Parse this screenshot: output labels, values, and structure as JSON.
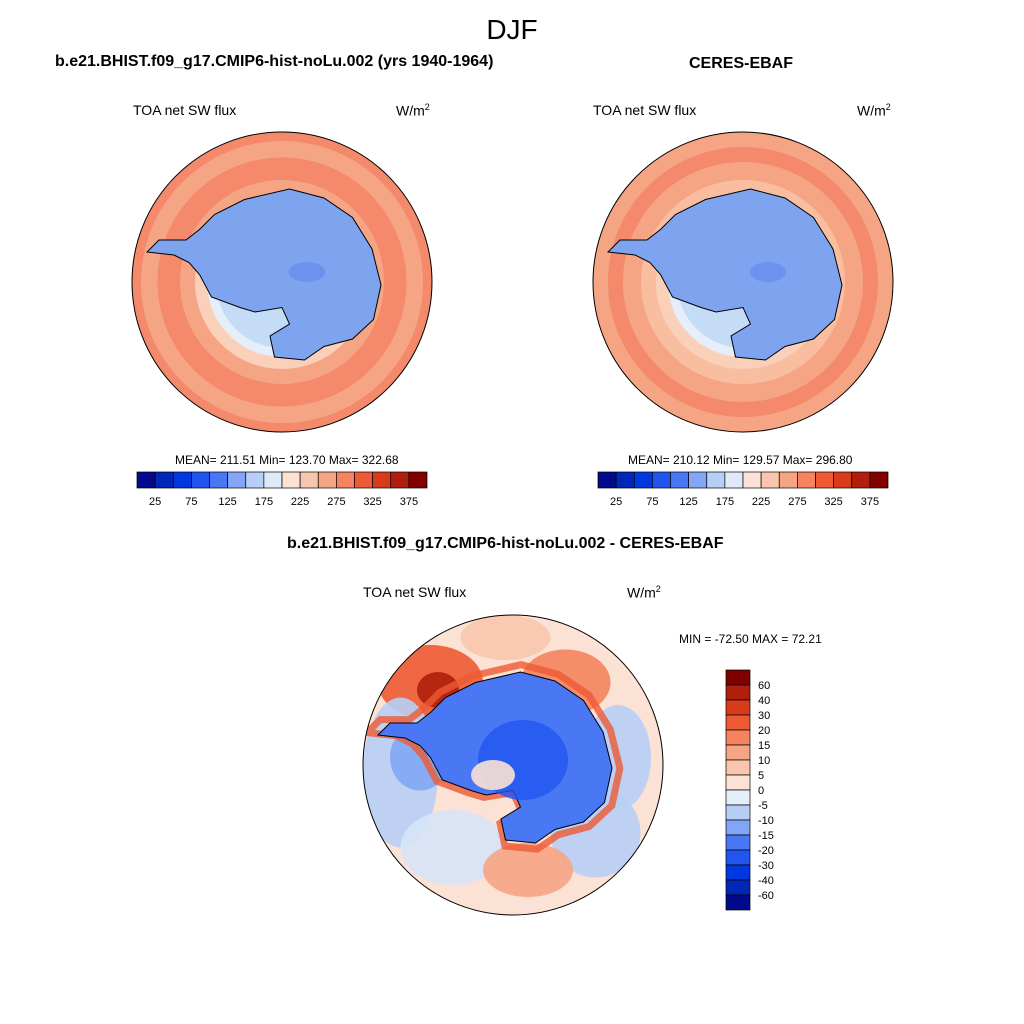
{
  "title": "DJF",
  "panels": [
    {
      "title": "b.e21.BHIST.f09_g17.CMIP6-hist-noLu.002 (yrs 1940-1964)",
      "variable": "TOA net SW flux",
      "units_base": "W/m",
      "units_exp": "2",
      "stats": "MEAN= 211.51  Min= 123.70  Max= 322.68",
      "field": {
        "bands": [
          {
            "r": 1.0,
            "c": "#f4896b"
          },
          {
            "r": 0.94,
            "c": "#f6a584"
          },
          {
            "r": 0.83,
            "c": "#f4896b"
          },
          {
            "r": 0.68,
            "c": "#f6a584"
          },
          {
            "r": 0.58,
            "c": "#fbd0ba"
          },
          {
            "r": 0.5,
            "c": "#e4effa"
          },
          {
            "r": 0.44,
            "c": "#c4dcf6"
          }
        ]
      }
    },
    {
      "title": "CERES-EBAF",
      "variable": "TOA net SW flux",
      "units_base": "W/m",
      "units_exp": "2",
      "stats": "MEAN= 210.12  Min= 129.57  Max= 296.80",
      "field": {
        "bands": [
          {
            "r": 1.0,
            "c": "#f6a584"
          },
          {
            "r": 0.9,
            "c": "#f4896b"
          },
          {
            "r": 0.8,
            "c": "#f6a584"
          },
          {
            "r": 0.68,
            "c": "#f9bda0"
          },
          {
            "r": 0.58,
            "c": "#fbd0ba"
          },
          {
            "r": 0.5,
            "c": "#e4effa"
          },
          {
            "r": 0.44,
            "c": "#c4dcf6"
          }
        ]
      }
    }
  ],
  "abs_colorbar": {
    "labels": [
      "25",
      "75",
      "125",
      "175",
      "225",
      "275",
      "325",
      "375"
    ],
    "colors": [
      "#000a8a",
      "#0027b8",
      "#0038df",
      "#2055f0",
      "#4a78f5",
      "#82a6f5",
      "#b7cff6",
      "#dfeaf9",
      "#fbe2d4",
      "#f9c6ad",
      "#f6a584",
      "#f4835e",
      "#ee5a34",
      "#d83a1a",
      "#b01f0c",
      "#800000"
    ]
  },
  "diff_panel": {
    "title": "b.e21.BHIST.f09_g17.CMIP6-hist-noLu.002 - CERES-EBAF",
    "variable": "TOA net SW flux",
    "units_base": "W/m",
    "units_exp": "2",
    "stats": "MIN = -72.50 MAX =  72.21"
  },
  "diff_colorbar": {
    "labels": [
      "60",
      "40",
      "30",
      "20",
      "15",
      "10",
      "5",
      "0",
      "-5",
      "-10",
      "-15",
      "-20",
      "-30",
      "-40",
      "-60"
    ],
    "colors": [
      "#800000",
      "#b01f0c",
      "#d83a1a",
      "#ee5a34",
      "#f4835e",
      "#f6a584",
      "#f9c6ad",
      "#fbe2d4",
      "#e4effa",
      "#b7cff6",
      "#82a6f5",
      "#4a78f5",
      "#2055f0",
      "#0038df",
      "#0027b8",
      "#000a8a"
    ]
  },
  "colors": {
    "ice_blue": "#7fa4ef",
    "coastline": "#000000"
  }
}
